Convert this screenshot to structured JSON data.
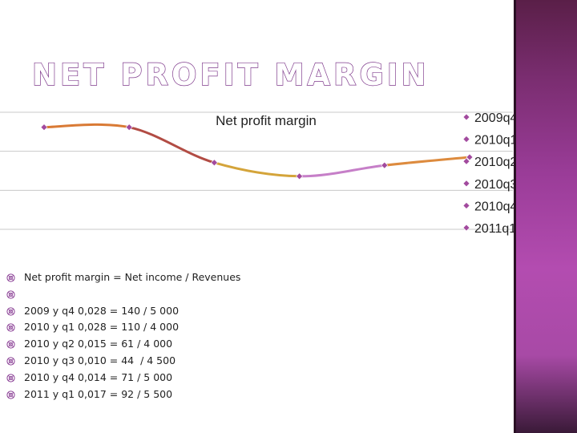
{
  "slide": {
    "title": "NET PROFIT MARGIN",
    "bullets": [
      "Net profit margin = Net income / Revenues",
      "",
      "2009 y q4 0,028 = 140 / 5 000",
      "2010 y q1 0,028 = 110 / 4 000",
      "2010 y q2 0,015 = 61 / 4 000",
      "2010 y q3 0,010 = 44  / 4 500",
      "2010 y q4 0,014 = 71 / 5 000",
      "2011 y q1 0,017 = 92 / 5 500"
    ]
  },
  "colors": {
    "title_outline": "#7f3a8c",
    "marker": "#a24a9e",
    "bullet": "#8a3f95",
    "panel": "#9a3c98"
  },
  "chart_data": {
    "type": "line",
    "title": "Net profit margin",
    "categories": [
      "2009q4",
      "2010q1",
      "2010q2",
      "2010q3",
      "2010q4",
      "2011q1"
    ],
    "values": [
      0.028,
      0.028,
      0.015,
      0.01,
      0.014,
      0.017
    ],
    "smooth": true,
    "ylim": [
      -0.0095,
      0.0335
    ],
    "grid": true,
    "legend": "right",
    "segment_colors": [
      "#d97a35",
      "#b24c44",
      "#d4a43a",
      "#c67fc8",
      "#dd8b3e"
    ]
  }
}
